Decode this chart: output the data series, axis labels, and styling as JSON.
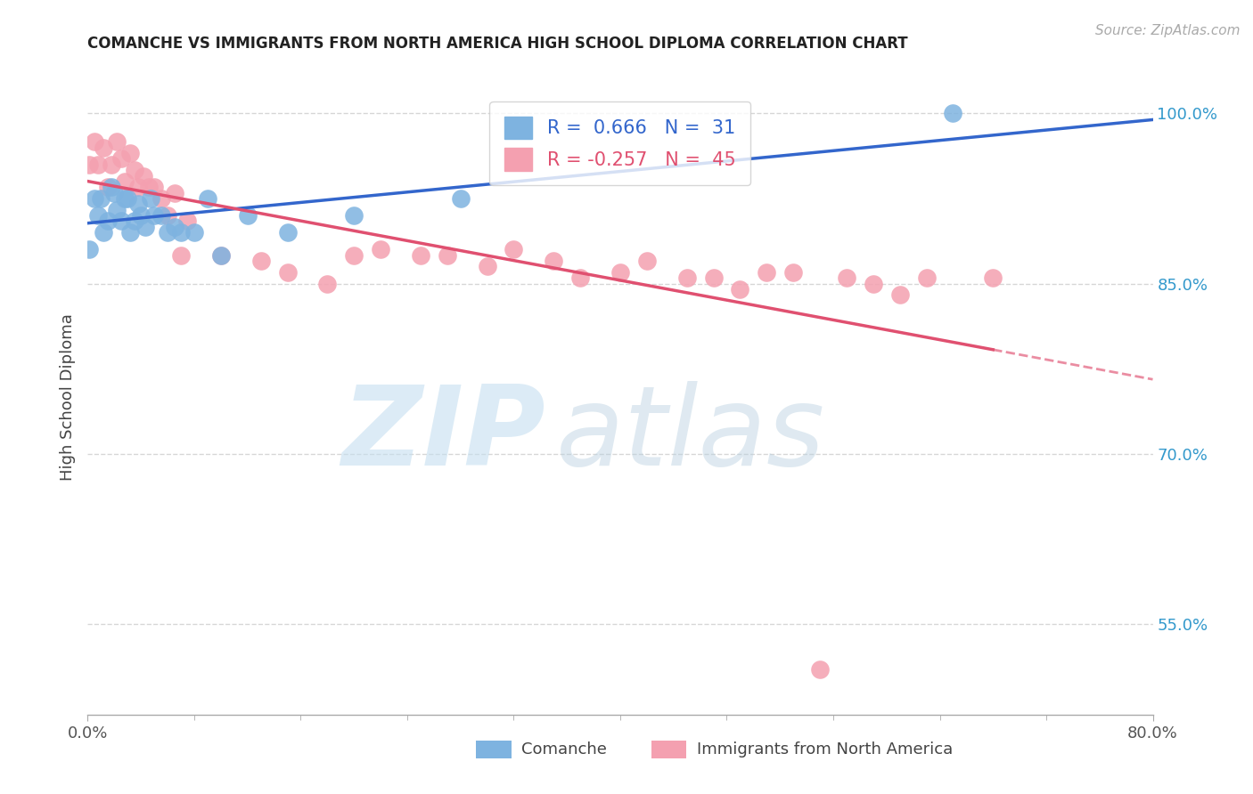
{
  "title": "COMANCHE VS IMMIGRANTS FROM NORTH AMERICA HIGH SCHOOL DIPLOMA CORRELATION CHART",
  "source": "Source: ZipAtlas.com",
  "ylabel": "High School Diploma",
  "xlim": [
    0.0,
    0.8
  ],
  "ylim": [
    0.47,
    1.03
  ],
  "yticks": [
    0.55,
    0.7,
    0.85,
    1.0
  ],
  "ytick_labels": [
    "55.0%",
    "70.0%",
    "85.0%",
    "100.0%"
  ],
  "xtick_labels": [
    "0.0%",
    "80.0%"
  ],
  "comanche_R": 0.666,
  "comanche_N": 31,
  "immigrants_R": -0.257,
  "immigrants_N": 45,
  "comanche_color": "#7eb3e0",
  "immigrants_color": "#f4a0b0",
  "comanche_line_color": "#3366cc",
  "immigrants_line_color": "#e05070",
  "comanche_x": [
    0.001,
    0.005,
    0.008,
    0.01,
    0.012,
    0.015,
    0.018,
    0.02,
    0.022,
    0.025,
    0.028,
    0.03,
    0.032,
    0.035,
    0.038,
    0.04,
    0.043,
    0.047,
    0.05,
    0.055,
    0.06,
    0.065,
    0.07,
    0.08,
    0.09,
    0.1,
    0.12,
    0.15,
    0.2,
    0.28,
    0.65
  ],
  "comanche_y": [
    0.88,
    0.925,
    0.91,
    0.925,
    0.895,
    0.905,
    0.935,
    0.93,
    0.915,
    0.905,
    0.925,
    0.925,
    0.895,
    0.905,
    0.92,
    0.91,
    0.9,
    0.925,
    0.91,
    0.91,
    0.895,
    0.9,
    0.895,
    0.895,
    0.925,
    0.875,
    0.91,
    0.895,
    0.91,
    0.925,
    1.0
  ],
  "immigrants_x": [
    0.001,
    0.005,
    0.008,
    0.012,
    0.015,
    0.018,
    0.022,
    0.025,
    0.028,
    0.032,
    0.035,
    0.038,
    0.042,
    0.046,
    0.05,
    0.055,
    0.06,
    0.065,
    0.07,
    0.075,
    0.1,
    0.13,
    0.15,
    0.18,
    0.2,
    0.22,
    0.25,
    0.27,
    0.3,
    0.32,
    0.35,
    0.37,
    0.4,
    0.42,
    0.45,
    0.47,
    0.49,
    0.51,
    0.53,
    0.55,
    0.57,
    0.59,
    0.61,
    0.63,
    0.68
  ],
  "immigrants_y": [
    0.955,
    0.975,
    0.955,
    0.97,
    0.935,
    0.955,
    0.975,
    0.96,
    0.94,
    0.965,
    0.95,
    0.935,
    0.945,
    0.935,
    0.935,
    0.925,
    0.91,
    0.93,
    0.875,
    0.905,
    0.875,
    0.87,
    0.86,
    0.85,
    0.875,
    0.88,
    0.875,
    0.875,
    0.865,
    0.88,
    0.87,
    0.855,
    0.86,
    0.87,
    0.855,
    0.855,
    0.845,
    0.86,
    0.86,
    0.51,
    0.855,
    0.85,
    0.84,
    0.855,
    0.855
  ]
}
